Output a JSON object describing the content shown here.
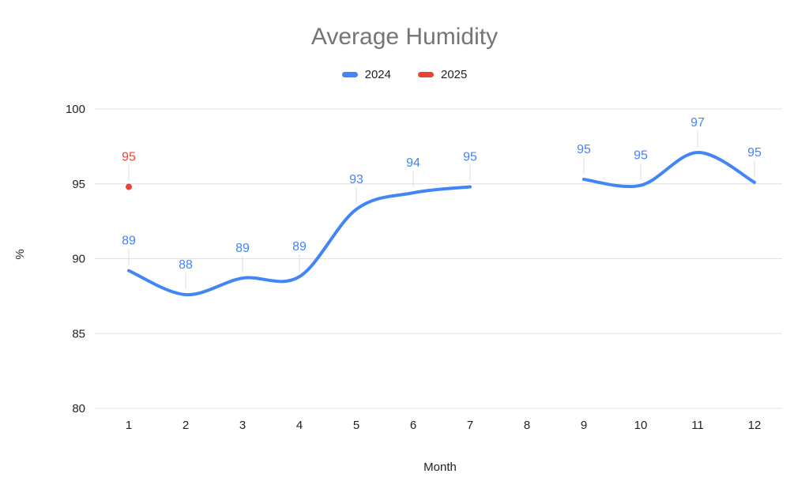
{
  "colors": {
    "background": "#ffffff",
    "title_text": "#757575",
    "axis_text": "#222222",
    "gridline": "#e0e0e0",
    "label_callout": "#dadce0",
    "series_blue": "#4285f4",
    "series_red": "#ea4335"
  },
  "chart_data": {
    "type": "line",
    "title": "Average Humidity",
    "xlabel": "Month",
    "ylabel": "%",
    "ylim": [
      80,
      100
    ],
    "yticks": [
      100,
      95,
      90,
      85,
      80
    ],
    "grid": true,
    "legend_position": "top",
    "categories": [
      1,
      2,
      3,
      4,
      5,
      6,
      7,
      8,
      9,
      10,
      11,
      12
    ],
    "series": [
      {
        "name": "2024",
        "color": "#4285f4",
        "style": "smooth-line",
        "values": [
          89,
          88,
          89,
          89,
          93,
          94,
          95,
          null,
          95,
          95,
          97,
          95
        ],
        "plot_values": [
          89.2,
          87.6,
          88.7,
          88.8,
          93.3,
          94.4,
          94.8,
          null,
          95.3,
          94.9,
          97.1,
          95.1
        ]
      },
      {
        "name": "2025",
        "color": "#ea4335",
        "style": "point",
        "values": [
          95,
          null,
          null,
          null,
          null,
          null,
          null,
          null,
          null,
          null,
          null,
          null
        ],
        "plot_values": [
          94.8,
          null,
          null,
          null,
          null,
          null,
          null,
          null,
          null,
          null,
          null,
          null
        ]
      }
    ]
  }
}
